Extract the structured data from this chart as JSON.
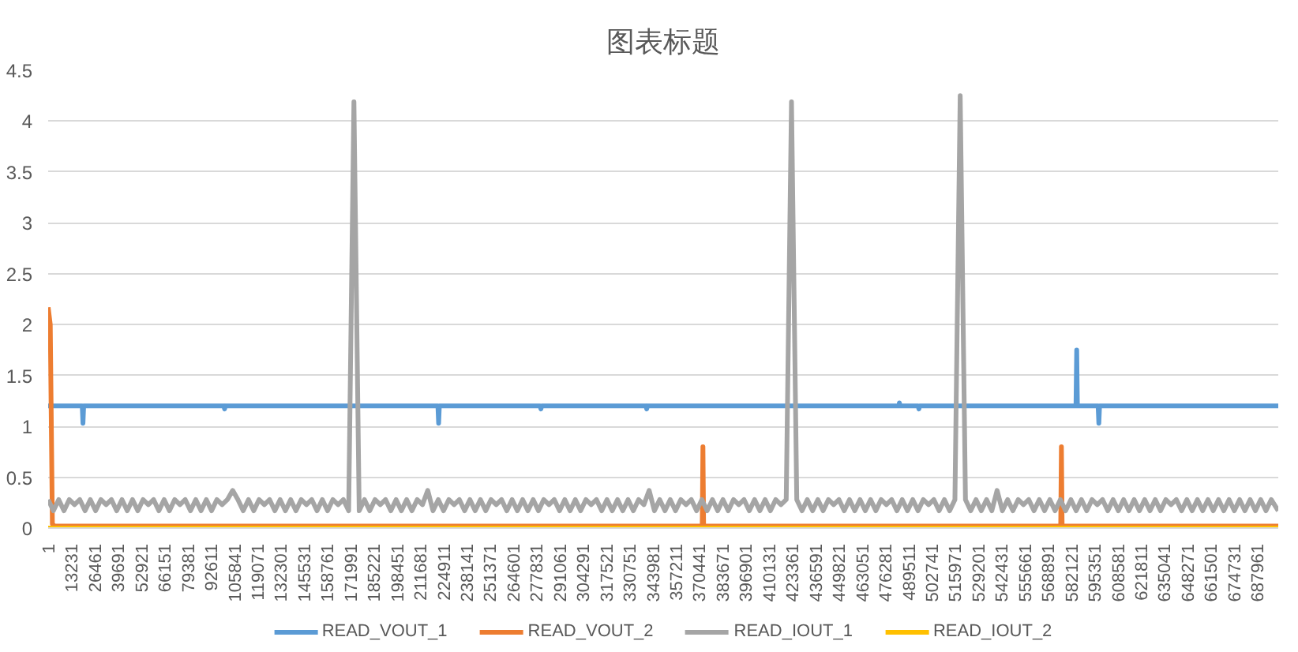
{
  "chart_data": {
    "type": "line",
    "title": "图表标题",
    "xlim": [
      1,
      700000
    ],
    "xticks": [
      1,
      13231,
      26461,
      39691,
      52921,
      66151,
      79381,
      92611,
      105841,
      119071,
      132301,
      145531,
      158761,
      171991,
      185221,
      198451,
      211681,
      224911,
      238141,
      251371,
      264601,
      277831,
      291061,
      304291,
      317521,
      330751,
      343981,
      357211,
      370441,
      383671,
      396901,
      410131,
      423361,
      436591,
      449821,
      463051,
      476281,
      489511,
      502741,
      515971,
      529201,
      542431,
      555661,
      568891,
      582121,
      595351,
      608581,
      621811,
      635041,
      648271,
      661501,
      674731,
      687961
    ],
    "ylim": [
      0,
      4.5
    ],
    "yticks": [
      0,
      0.5,
      1,
      1.5,
      2,
      2.5,
      3,
      3.5,
      4,
      4.5
    ],
    "grid": "y",
    "legend": "bottom",
    "series": [
      {
        "name": "READ_VOUT_1",
        "color": "#5b9bd5",
        "x": [
          1,
          19400,
          19800,
          20200,
          100000,
          100400,
          100800,
          221800,
          222200,
          222600,
          280000,
          280400,
          280800,
          340200,
          340600,
          341000,
          484000,
          484400,
          484800,
          495100,
          495500,
          495900,
          584900,
          585300,
          585700,
          597500,
          597900,
          598300,
          700000
        ],
        "values": [
          1.2,
          1.2,
          1.03,
          1.2,
          1.2,
          1.17,
          1.2,
          1.2,
          1.03,
          1.2,
          1.2,
          1.17,
          1.2,
          1.2,
          1.17,
          1.2,
          1.2,
          1.23,
          1.2,
          1.2,
          1.17,
          1.2,
          1.2,
          1.75,
          1.2,
          1.2,
          1.03,
          1.2,
          1.2
        ]
      },
      {
        "name": "READ_VOUT_2",
        "color": "#ed7d31",
        "x": [
          1,
          1200,
          2400,
          3600,
          372200,
          372600,
          373000,
          576200,
          576600,
          577000,
          700000
        ],
        "values": [
          2.17,
          2.0,
          0.04,
          0.02,
          0.02,
          0.8,
          0.02,
          0.02,
          0.8,
          0.02,
          0.02
        ]
      },
      {
        "name": "READ_IOUT_1",
        "color": "#a5a5a5",
        "x": [
          1,
          3000,
          6000,
          9000,
          12000,
          15000,
          18000,
          21000,
          24000,
          27000,
          30000,
          33000,
          36000,
          39000,
          42000,
          45000,
          48000,
          51000,
          54000,
          57000,
          60000,
          63000,
          66000,
          69000,
          72000,
          75000,
          78000,
          81000,
          84000,
          87000,
          90000,
          93000,
          96000,
          99000,
          102000,
          105000,
          108000,
          111000,
          114000,
          117000,
          120000,
          123000,
          126000,
          129000,
          132000,
          135000,
          138000,
          141000,
          144000,
          147000,
          150000,
          153000,
          156000,
          159000,
          162000,
          165000,
          168000,
          171000,
          174000,
          177000,
          180000,
          183000,
          186000,
          189000,
          192000,
          195000,
          198000,
          201000,
          204000,
          207000,
          210000,
          213000,
          216000,
          219000,
          222000,
          225000,
          228000,
          231000,
          234000,
          237000,
          240000,
          243000,
          246000,
          249000,
          252000,
          255000,
          258000,
          261000,
          264000,
          267000,
          270000,
          273000,
          276000,
          279000,
          282000,
          285000,
          288000,
          291000,
          294000,
          297000,
          300000,
          303000,
          306000,
          309000,
          312000,
          315000,
          318000,
          321000,
          324000,
          327000,
          330000,
          333000,
          336000,
          339000,
          342000,
          345000,
          348000,
          351000,
          354000,
          357000,
          360000,
          363000,
          366000,
          369000,
          372000,
          375000,
          378000,
          381000,
          384000,
          387000,
          390000,
          393000,
          396000,
          399000,
          402000,
          405000,
          408000,
          411000,
          414000,
          417000,
          420000,
          423000,
          426000,
          429000,
          432000,
          435000,
          438000,
          441000,
          444000,
          447000,
          450000,
          453000,
          456000,
          459000,
          462000,
          465000,
          468000,
          471000,
          474000,
          477000,
          480000,
          483000,
          486000,
          489000,
          492000,
          495000,
          498000,
          501000,
          504000,
          507000,
          510000,
          513000,
          516000,
          519000,
          522000,
          525000,
          528000,
          531000,
          534000,
          537000,
          540000,
          543000,
          546000,
          549000,
          552000,
          555000,
          558000,
          561000,
          564000,
          567000,
          570000,
          573000,
          576000,
          579000,
          582000,
          585000,
          588000,
          591000,
          594000,
          597000,
          600000,
          603000,
          606000,
          609000,
          612000,
          615000,
          618000,
          621000,
          624000,
          627000,
          630000,
          633000,
          636000,
          639000,
          642000,
          645000,
          648000,
          651000,
          654000,
          657000,
          660000,
          663000,
          666000,
          669000,
          672000,
          675000,
          678000,
          681000,
          684000,
          687000,
          690000,
          693000,
          696000,
          700000
        ],
        "values": [
          0.28,
          0.17,
          0.28,
          0.17,
          0.28,
          0.23,
          0.28,
          0.17,
          0.28,
          0.17,
          0.28,
          0.23,
          0.28,
          0.17,
          0.28,
          0.17,
          0.28,
          0.17,
          0.28,
          0.23,
          0.28,
          0.17,
          0.28,
          0.17,
          0.28,
          0.23,
          0.28,
          0.17,
          0.28,
          0.17,
          0.28,
          0.17,
          0.28,
          0.23,
          0.28,
          0.37,
          0.28,
          0.17,
          0.28,
          0.17,
          0.28,
          0.23,
          0.28,
          0.17,
          0.28,
          0.17,
          0.28,
          0.17,
          0.28,
          0.23,
          0.28,
          0.17,
          0.28,
          0.17,
          0.28,
          0.23,
          0.28,
          0.17,
          4.19,
          0.17,
          0.28,
          0.17,
          0.28,
          0.23,
          0.28,
          0.17,
          0.28,
          0.17,
          0.28,
          0.17,
          0.28,
          0.23,
          0.37,
          0.17,
          0.28,
          0.17,
          0.28,
          0.23,
          0.28,
          0.17,
          0.28,
          0.17,
          0.28,
          0.17,
          0.28,
          0.23,
          0.28,
          0.17,
          0.28,
          0.17,
          0.28,
          0.17,
          0.28,
          0.17,
          0.28,
          0.23,
          0.28,
          0.17,
          0.28,
          0.17,
          0.28,
          0.17,
          0.28,
          0.23,
          0.28,
          0.17,
          0.28,
          0.17,
          0.28,
          0.17,
          0.28,
          0.17,
          0.28,
          0.23,
          0.37,
          0.17,
          0.28,
          0.17,
          0.28,
          0.17,
          0.28,
          0.23,
          0.28,
          0.17,
          0.28,
          0.17,
          0.28,
          0.17,
          0.28,
          0.17,
          0.28,
          0.23,
          0.28,
          0.17,
          0.28,
          0.17,
          0.28,
          0.17,
          0.28,
          0.23,
          0.28,
          4.19,
          0.28,
          0.17,
          0.28,
          0.17,
          0.28,
          0.17,
          0.28,
          0.23,
          0.28,
          0.17,
          0.28,
          0.17,
          0.28,
          0.17,
          0.28,
          0.17,
          0.28,
          0.23,
          0.28,
          0.17,
          0.28,
          0.17,
          0.28,
          0.17,
          0.28,
          0.23,
          0.28,
          0.17,
          0.28,
          0.17,
          0.28,
          4.25,
          0.28,
          0.17,
          0.28,
          0.17,
          0.28,
          0.17,
          0.37,
          0.17,
          0.28,
          0.17,
          0.28,
          0.23,
          0.28,
          0.17,
          0.28,
          0.17,
          0.28,
          0.17,
          0.28,
          0.17,
          0.28,
          0.17,
          0.28,
          0.17,
          0.28,
          0.23,
          0.28,
          0.17,
          0.28,
          0.17,
          0.28,
          0.17,
          0.28,
          0.17,
          0.28,
          0.17,
          0.28,
          0.17,
          0.28,
          0.23,
          0.28,
          0.17,
          0.28,
          0.17,
          0.28,
          0.17,
          0.28,
          0.17,
          0.28,
          0.17,
          0.28,
          0.17,
          0.28,
          0.17,
          0.28,
          0.17,
          0.28,
          0.17,
          0.28,
          0.17
        ]
      },
      {
        "name": "READ_IOUT_2",
        "color": "#ffc000",
        "x": [
          1,
          700000
        ],
        "values": [
          0,
          0
        ]
      }
    ]
  }
}
